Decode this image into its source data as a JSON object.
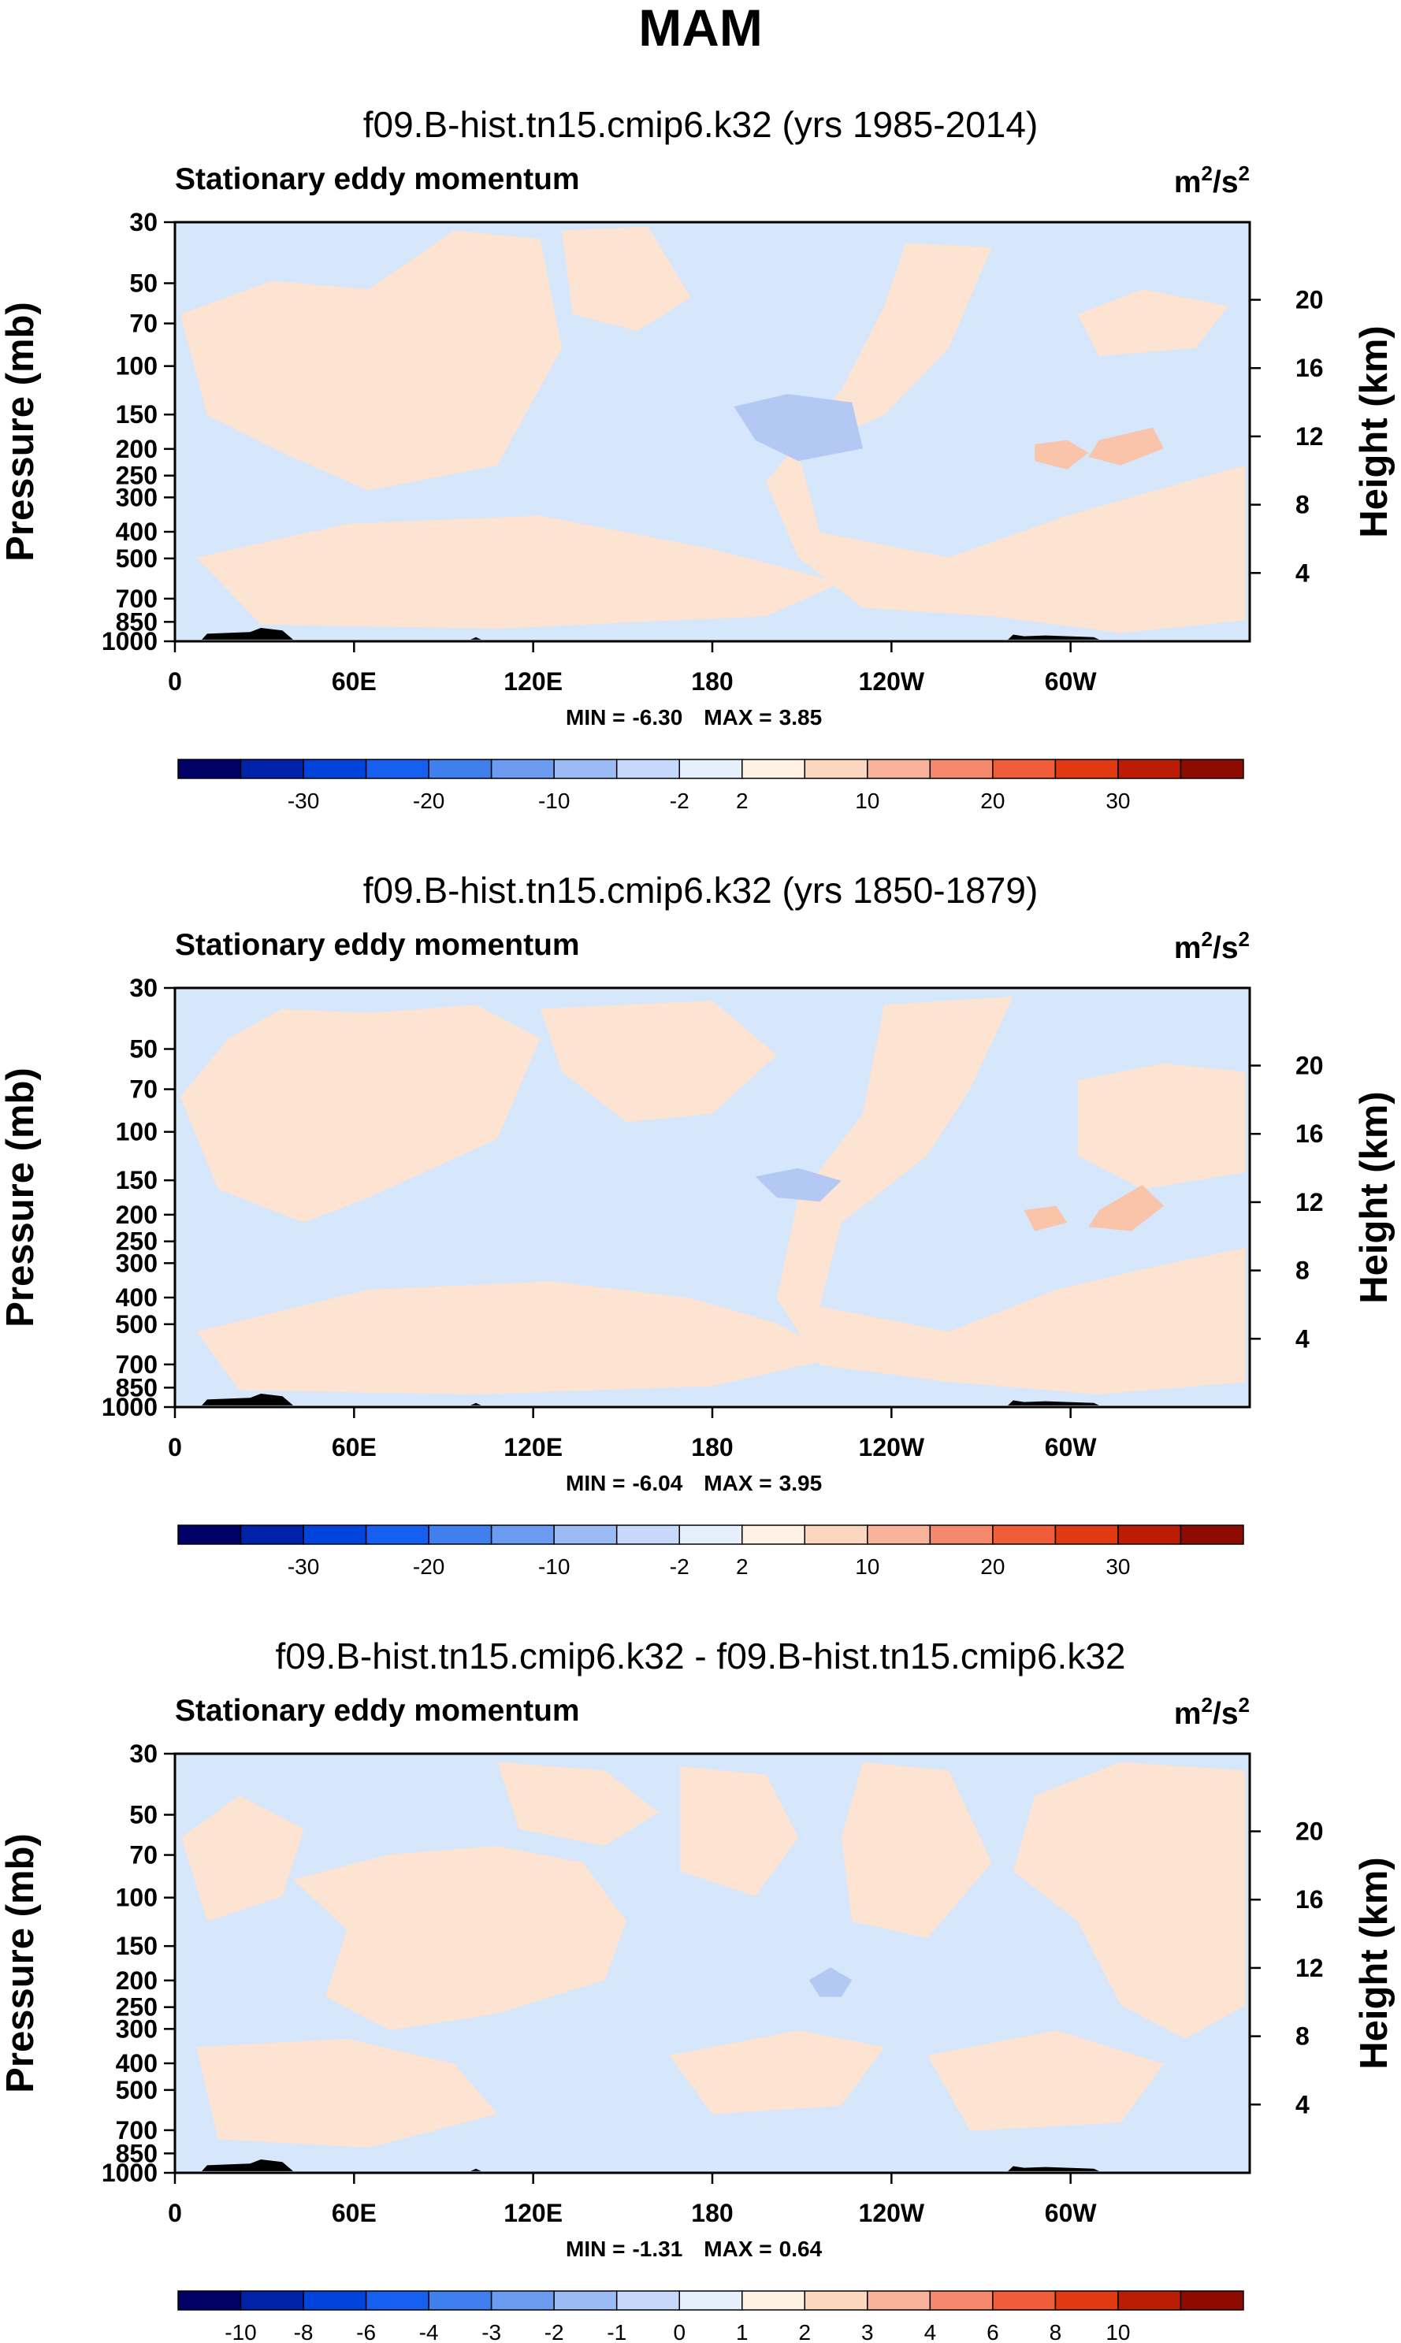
{
  "figure": {
    "title": "MAM"
  },
  "colors": {
    "background": "#ffffff",
    "frame": "#000000",
    "terrain": "#000000",
    "light_blue": "#d6e6fb",
    "light_orange": "#fde3d2",
    "medium_blue": "#b3c9f4",
    "medium_orange": "#f9c4aa"
  },
  "colorbar_colors": [
    "#000066",
    "#0022a8",
    "#0044dd",
    "#1560f0",
    "#3f7fee",
    "#6c9cf2",
    "#9bbbf5",
    "#c6d9fa",
    "#e6f0fd",
    "#fff1e3",
    "#fcd7c0",
    "#f9b39a",
    "#f6896c",
    "#f15d3a",
    "#e13912",
    "#bd1c04",
    "#8d0b00"
  ],
  "chart_data": [
    {
      "type": "heatmap",
      "title": "f09.B-hist.tn15.cmip6.k32 (yrs 1985-2014)",
      "left_string": "Stationary eddy momentum",
      "units_base": "m",
      "units_exp1": "2",
      "units_mid": "/s",
      "units_exp2": "2",
      "ylabel": "Pressure (mb)",
      "ylabel_right": "Height (km)",
      "x_ticks": [
        "0",
        "60E",
        "120E",
        "180",
        "120W",
        "60W"
      ],
      "x_tick_values": [
        0,
        60,
        120,
        180,
        240,
        300
      ],
      "xlim": [
        0,
        360
      ],
      "y_ticks": [
        "30",
        "50",
        "70",
        "100",
        "150",
        "200",
        "250",
        "300",
        "400",
        "500",
        "700",
        "850",
        "1000"
      ],
      "y_tick_values": [
        30,
        50,
        70,
        100,
        150,
        200,
        250,
        300,
        400,
        500,
        700,
        850,
        1000
      ],
      "ylim": [
        1000,
        30
      ],
      "right_ticks": [
        "4",
        "8",
        "12",
        "16",
        "20"
      ],
      "right_tick_values": [
        4,
        8,
        12,
        16,
        20
      ],
      "min_label": "MIN =",
      "min": "-6.30",
      "max_label": "MAX =",
      "max": "3.85",
      "colorbar_labels": [
        "-30",
        "-20",
        "-10",
        "-2",
        "2",
        "10",
        "20",
        "30"
      ],
      "colorbar_label_boxes": [
        2,
        4,
        6,
        8,
        9,
        11,
        13,
        15
      ]
    },
    {
      "type": "heatmap",
      "title": "f09.B-hist.tn15.cmip6.k32 (yrs 1850-1879)",
      "left_string": "Stationary eddy momentum",
      "units_base": "m",
      "units_exp1": "2",
      "units_mid": "/s",
      "units_exp2": "2",
      "ylabel": "Pressure (mb)",
      "ylabel_right": "Height (km)",
      "x_ticks": [
        "0",
        "60E",
        "120E",
        "180",
        "120W",
        "60W"
      ],
      "x_tick_values": [
        0,
        60,
        120,
        180,
        240,
        300
      ],
      "xlim": [
        0,
        360
      ],
      "y_ticks": [
        "30",
        "50",
        "70",
        "100",
        "150",
        "200",
        "250",
        "300",
        "400",
        "500",
        "700",
        "850",
        "1000"
      ],
      "y_tick_values": [
        30,
        50,
        70,
        100,
        150,
        200,
        250,
        300,
        400,
        500,
        700,
        850,
        1000
      ],
      "ylim": [
        1000,
        30
      ],
      "right_ticks": [
        "4",
        "8",
        "12",
        "16",
        "20"
      ],
      "right_tick_values": [
        4,
        8,
        12,
        16,
        20
      ],
      "min_label": "MIN =",
      "min": "-6.04",
      "max_label": "MAX =",
      "max": "3.95",
      "colorbar_labels": [
        "-30",
        "-20",
        "-10",
        "-2",
        "2",
        "10",
        "20",
        "30"
      ],
      "colorbar_label_boxes": [
        2,
        4,
        6,
        8,
        9,
        11,
        13,
        15
      ]
    },
    {
      "type": "heatmap",
      "title": "f09.B-hist.tn15.cmip6.k32 - f09.B-hist.tn15.cmip6.k32",
      "left_string": "Stationary eddy momentum",
      "units_base": "m",
      "units_exp1": "2",
      "units_mid": "/s",
      "units_exp2": "2",
      "ylabel": "Pressure (mb)",
      "ylabel_right": "Height (km)",
      "x_ticks": [
        "0",
        "60E",
        "120E",
        "180",
        "120W",
        "60W"
      ],
      "x_tick_values": [
        0,
        60,
        120,
        180,
        240,
        300
      ],
      "xlim": [
        0,
        360
      ],
      "y_ticks": [
        "30",
        "50",
        "70",
        "100",
        "150",
        "200",
        "250",
        "300",
        "400",
        "500",
        "700",
        "850",
        "1000"
      ],
      "y_tick_values": [
        30,
        50,
        70,
        100,
        150,
        200,
        250,
        300,
        400,
        500,
        700,
        850,
        1000
      ],
      "ylim": [
        1000,
        30
      ],
      "right_ticks": [
        "4",
        "8",
        "12",
        "16",
        "20"
      ],
      "right_tick_values": [
        4,
        8,
        12,
        16,
        20
      ],
      "min_label": "MIN =",
      "min": "-1.31",
      "max_label": "MAX =",
      "max": "0.64",
      "colorbar_labels": [
        "-10",
        "-8",
        "-6",
        "-4",
        "-3",
        "-2",
        "-1",
        "0",
        "1",
        "2",
        "3",
        "4",
        "6",
        "8",
        "10"
      ],
      "colorbar_label_boxes": [
        1,
        2,
        3,
        4,
        5,
        6,
        7,
        8,
        9,
        10,
        11,
        12,
        13,
        14,
        15
      ]
    }
  ]
}
